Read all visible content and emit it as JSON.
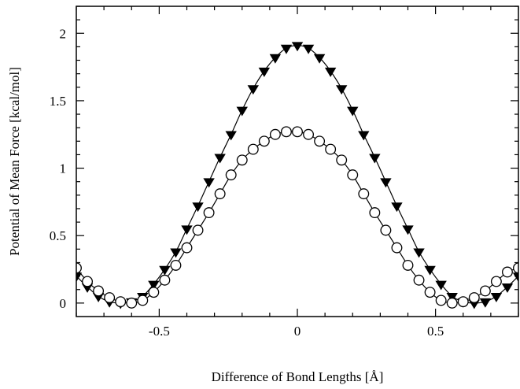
{
  "chart_data": {
    "type": "line",
    "title": "",
    "xlabel": "Difference of Bond Lengths [Å]",
    "ylabel": "Potential of Mean Force [kcal/mol]",
    "xlim": [
      -0.8,
      0.8
    ],
    "ylim": [
      -0.1,
      2.2
    ],
    "xticks": [
      -0.5,
      0,
      0.5
    ],
    "xtick_labels": [
      "-0.5",
      "0",
      "0.5"
    ],
    "yticks": [
      0,
      0.5,
      1,
      1.5,
      2
    ],
    "ytick_labels": [
      "0",
      "0.5",
      "1",
      "1.5",
      "2"
    ],
    "grid": false,
    "series": [
      {
        "marker": "filled-down-triangle",
        "color": "#000000",
        "x": [
          -0.8,
          -0.76,
          -0.72,
          -0.68,
          -0.64,
          -0.6,
          -0.56,
          -0.52,
          -0.48,
          -0.44,
          -0.4,
          -0.36,
          -0.32,
          -0.28,
          -0.24,
          -0.2,
          -0.16,
          -0.12,
          -0.08,
          -0.04,
          0.0,
          0.04,
          0.08,
          0.12,
          0.16,
          0.2,
          0.24,
          0.28,
          0.32,
          0.36,
          0.4,
          0.44,
          0.48,
          0.52,
          0.56,
          0.6,
          0.64,
          0.68,
          0.72,
          0.76,
          0.8
        ],
        "y": [
          0.2,
          0.12,
          0.05,
          0.01,
          0.0,
          0.01,
          0.05,
          0.14,
          0.25,
          0.38,
          0.55,
          0.72,
          0.9,
          1.08,
          1.25,
          1.43,
          1.59,
          1.72,
          1.82,
          1.89,
          1.91,
          1.89,
          1.82,
          1.72,
          1.59,
          1.43,
          1.25,
          1.08,
          0.9,
          0.72,
          0.55,
          0.38,
          0.25,
          0.14,
          0.05,
          0.01,
          0.0,
          0.01,
          0.05,
          0.12,
          0.2
        ]
      },
      {
        "marker": "open-circle",
        "color": "#000000",
        "x": [
          -0.8,
          -0.76,
          -0.72,
          -0.68,
          -0.64,
          -0.6,
          -0.56,
          -0.52,
          -0.48,
          -0.44,
          -0.4,
          -0.36,
          -0.32,
          -0.28,
          -0.24,
          -0.2,
          -0.16,
          -0.12,
          -0.08,
          -0.04,
          0.0,
          0.04,
          0.08,
          0.12,
          0.16,
          0.2,
          0.24,
          0.28,
          0.32,
          0.36,
          0.4,
          0.44,
          0.48,
          0.52,
          0.56,
          0.6,
          0.64,
          0.68,
          0.72,
          0.76,
          0.8
        ],
        "y": [
          0.26,
          0.16,
          0.09,
          0.04,
          0.01,
          0.0,
          0.02,
          0.08,
          0.17,
          0.28,
          0.41,
          0.54,
          0.67,
          0.81,
          0.95,
          1.06,
          1.14,
          1.2,
          1.25,
          1.27,
          1.27,
          1.25,
          1.2,
          1.14,
          1.06,
          0.95,
          0.81,
          0.67,
          0.54,
          0.41,
          0.28,
          0.17,
          0.08,
          0.02,
          0.0,
          0.01,
          0.04,
          0.09,
          0.16,
          0.23,
          0.26
        ]
      }
    ]
  }
}
